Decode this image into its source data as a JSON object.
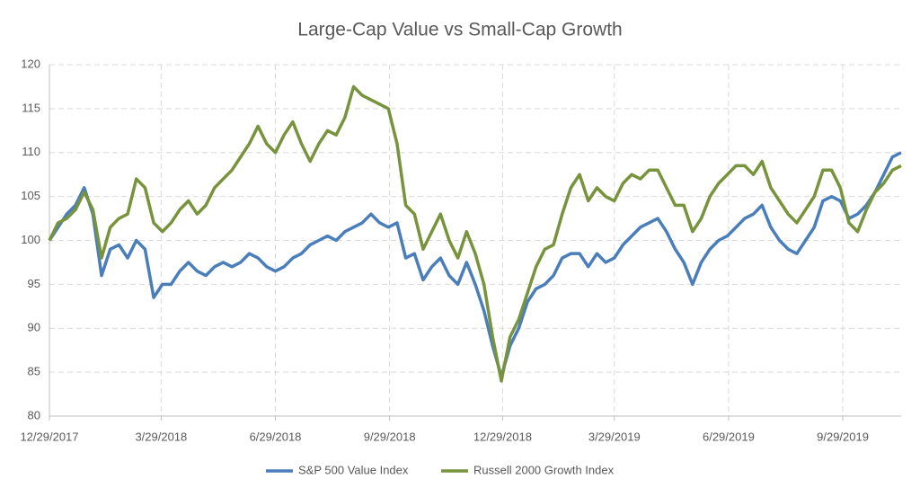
{
  "chart_data": {
    "type": "line",
    "title": "Large-Cap Value vs Small-Cap Growth",
    "x": [
      "2017-12-29",
      "2018-01-05",
      "2018-01-12",
      "2018-01-19",
      "2018-01-26",
      "2018-02-02",
      "2018-02-09",
      "2018-02-16",
      "2018-02-23",
      "2018-03-02",
      "2018-03-09",
      "2018-03-16",
      "2018-03-23",
      "2018-03-30",
      "2018-04-06",
      "2018-04-13",
      "2018-04-20",
      "2018-04-27",
      "2018-05-04",
      "2018-05-11",
      "2018-05-18",
      "2018-05-25",
      "2018-06-01",
      "2018-06-08",
      "2018-06-15",
      "2018-06-22",
      "2018-06-29",
      "2018-07-06",
      "2018-07-13",
      "2018-07-20",
      "2018-07-27",
      "2018-08-03",
      "2018-08-10",
      "2018-08-17",
      "2018-08-24",
      "2018-08-31",
      "2018-09-07",
      "2018-09-14",
      "2018-09-21",
      "2018-09-28",
      "2018-10-05",
      "2018-10-12",
      "2018-10-19",
      "2018-10-26",
      "2018-11-02",
      "2018-11-09",
      "2018-11-16",
      "2018-11-23",
      "2018-11-30",
      "2018-12-07",
      "2018-12-14",
      "2018-12-21",
      "2018-12-28",
      "2019-01-04",
      "2019-01-11",
      "2019-01-18",
      "2019-01-25",
      "2019-02-01",
      "2019-02-08",
      "2019-02-15",
      "2019-02-22",
      "2019-03-01",
      "2019-03-08",
      "2019-03-15",
      "2019-03-22",
      "2019-03-29",
      "2019-04-05",
      "2019-04-12",
      "2019-04-19",
      "2019-04-26",
      "2019-05-03",
      "2019-05-10",
      "2019-05-17",
      "2019-05-24",
      "2019-05-31",
      "2019-06-07",
      "2019-06-14",
      "2019-06-21",
      "2019-06-28",
      "2019-07-05",
      "2019-07-12",
      "2019-07-19",
      "2019-07-26",
      "2019-08-02",
      "2019-08-09",
      "2019-08-16",
      "2019-08-23",
      "2019-08-30",
      "2019-09-06",
      "2019-09-13",
      "2019-09-20",
      "2019-09-27",
      "2019-10-04",
      "2019-10-11",
      "2019-10-18",
      "2019-10-25",
      "2019-11-01",
      "2019-11-08",
      "2019-11-15"
    ],
    "series": [
      {
        "name": "S&P 500 Value Index",
        "color": "#4a7ebb",
        "values": [
          100,
          101.5,
          103,
          104,
          106,
          103,
          96,
          99,
          99.5,
          98,
          100,
          99,
          93.5,
          95,
          95,
          96.5,
          97.5,
          96.5,
          96,
          97,
          97.5,
          97,
          97.5,
          98.5,
          98,
          97,
          96.5,
          97,
          98,
          98.5,
          99.5,
          100,
          100.5,
          100,
          101,
          101.5,
          102,
          103,
          102,
          101.5,
          102,
          98,
          98.5,
          95.5,
          97,
          98,
          96,
          95,
          97.5,
          95,
          92,
          88,
          84.5,
          88,
          90,
          93,
          94.5,
          95,
          96,
          98,
          98.5,
          98.5,
          97,
          98.5,
          97.5,
          98,
          99.5,
          100.5,
          101.5,
          102,
          102.5,
          101,
          99,
          97.5,
          95,
          97.5,
          99,
          100,
          100.5,
          101.5,
          102.5,
          103,
          104,
          101.5,
          100,
          99,
          98.5,
          100,
          101.5,
          104.5,
          105,
          104.5,
          102.5,
          103,
          104,
          105.5,
          107.5,
          109.5,
          110
        ]
      },
      {
        "name": "Russell 2000 Growth Index",
        "color": "#77933c",
        "values": [
          100,
          102,
          102.5,
          103.5,
          105.5,
          103.5,
          98,
          101.5,
          102.5,
          103,
          107,
          106,
          102,
          101,
          102,
          103.5,
          104.5,
          103,
          104,
          106,
          107,
          108,
          109.5,
          111,
          113,
          111,
          110,
          112,
          113.5,
          111,
          109,
          111,
          112.5,
          112,
          114,
          117.5,
          116.5,
          116,
          115.5,
          115,
          111,
          104,
          103,
          99,
          101,
          103,
          100,
          98,
          101,
          98.5,
          95,
          89,
          84,
          89,
          91,
          94,
          97,
          99,
          99.5,
          103,
          106,
          107.5,
          104.5,
          106,
          105,
          104.5,
          106.5,
          107.5,
          107,
          108,
          108,
          106,
          104,
          104,
          101,
          102.5,
          105,
          106.5,
          107.5,
          108.5,
          108.5,
          107.5,
          109,
          106,
          104.5,
          103,
          102,
          103.5,
          105,
          108,
          108,
          106,
          102,
          101,
          103.5,
          105.5,
          106.5,
          108,
          108.5
        ]
      }
    ],
    "xlim": [
      "2017-12-29",
      "2019-11-15"
    ],
    "xticks": [
      {
        "value": "2017-12-29",
        "label": "12/29/2017"
      },
      {
        "value": "2018-03-29",
        "label": "3/29/2018"
      },
      {
        "value": "2018-06-29",
        "label": "6/29/2018"
      },
      {
        "value": "2018-09-29",
        "label": "9/29/2018"
      },
      {
        "value": "2018-12-29",
        "label": "12/29/2018"
      },
      {
        "value": "2019-03-29",
        "label": "3/29/2019"
      },
      {
        "value": "2019-06-29",
        "label": "6/29/2019"
      },
      {
        "value": "2019-09-29",
        "label": "9/29/2019"
      }
    ],
    "ylim": [
      80,
      120
    ],
    "yticks": [
      80,
      85,
      90,
      95,
      100,
      105,
      110,
      115,
      120
    ],
    "grid": true,
    "legend": "bottom"
  }
}
